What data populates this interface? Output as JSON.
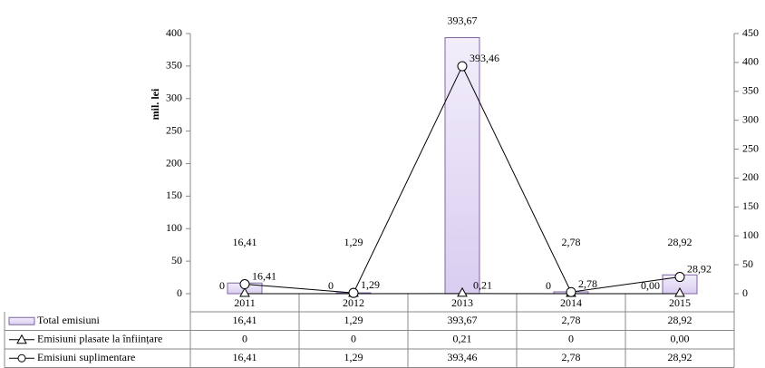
{
  "chart_data": {
    "type": "bar-line",
    "y_label": "mil. lei",
    "categories": [
      "2011",
      "2012",
      "2013",
      "2014",
      "2015"
    ],
    "ylim": [
      0,
      400
    ],
    "yticks": [
      0,
      50,
      100,
      150,
      200,
      250,
      300,
      350,
      400
    ],
    "y2lim": [
      0,
      450
    ],
    "y2ticks": [
      0,
      50,
      100,
      150,
      200,
      250,
      300,
      350,
      400,
      450
    ],
    "series": [
      {
        "name": "Total emisiuni",
        "type": "bar",
        "color": "#d9cdf0",
        "values": [
          16.41,
          1.29,
          393.67,
          2.78,
          28.92
        ],
        "value_labels": [
          "16,41",
          "1,29",
          "393,67",
          "2,78",
          "28,92"
        ]
      },
      {
        "name": "Emisiuni plasate la înființare",
        "type": "line",
        "marker": "triangle",
        "color": "#000000",
        "values": [
          0,
          0,
          0.21,
          0,
          0
        ],
        "value_labels": [
          "0",
          "0",
          "0,21",
          "0",
          "0,00"
        ]
      },
      {
        "name": "Emisiuni suplimentare",
        "type": "line",
        "marker": "circle",
        "axis": "y2",
        "color": "#000000",
        "values": [
          16.41,
          1.29,
          393.46,
          2.78,
          28.92
        ],
        "value_labels": [
          "16,41",
          "1,29",
          "393,46",
          "2,78",
          "28,92"
        ]
      }
    ]
  }
}
